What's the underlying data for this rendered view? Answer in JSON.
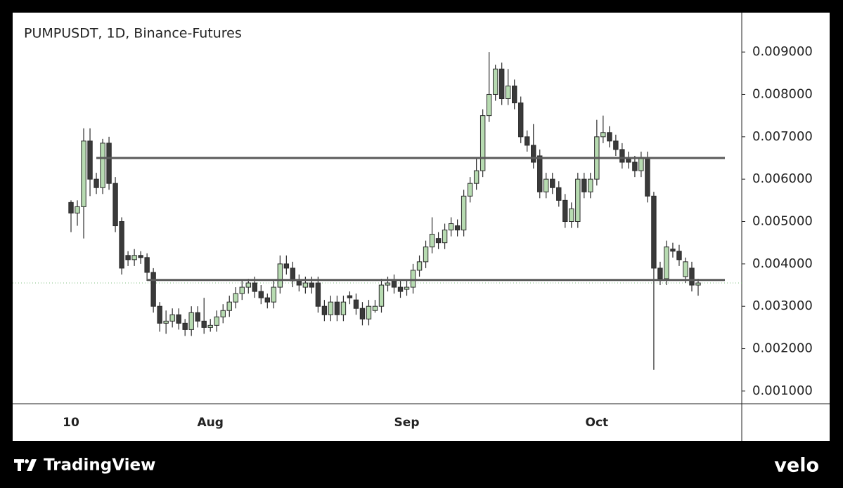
{
  "chart_data": {
    "type": "candlestick",
    "title": "PUMPUSDT, 1D, Binance-Futures",
    "branding": "TradingView",
    "source": "velo",
    "categories": [
      "10",
      null,
      null,
      null,
      null,
      null,
      null,
      null,
      null,
      null,
      null,
      null,
      null,
      null,
      null,
      null,
      null,
      null,
      null,
      null,
      null,
      null,
      "Aug",
      null,
      null,
      null,
      null,
      null,
      null,
      null,
      null,
      null,
      null,
      null,
      null,
      null,
      null,
      null,
      null,
      null,
      null,
      null,
      null,
      null,
      null,
      null,
      null,
      null,
      null,
      null,
      null,
      null,
      null,
      "Sep",
      null,
      null,
      null,
      null,
      null,
      null,
      null,
      null,
      null,
      null,
      null,
      null,
      null,
      null,
      null,
      null,
      null,
      null,
      null,
      null,
      null,
      null,
      null,
      null,
      null,
      null,
      null,
      null,
      null,
      "Oct",
      null,
      null,
      null,
      null,
      null,
      null,
      null,
      null,
      null,
      null,
      null,
      null,
      null,
      null,
      null,
      null
    ],
    "open": [
      0.00545,
      0.0052,
      0.00535,
      0.0069,
      0.006,
      0.0058,
      0.00685,
      0.0059,
      0.005,
      0.0042,
      0.0041,
      0.0042,
      0.00415,
      0.0038,
      0.003,
      0.0026,
      0.00265,
      0.0028,
      0.0026,
      0.00245,
      0.00285,
      0.00265,
      0.0025,
      0.00255,
      0.00275,
      0.0029,
      0.0031,
      0.0033,
      0.00345,
      0.00355,
      0.00335,
      0.0032,
      0.0031,
      0.00345,
      0.004,
      0.0039,
      0.0036,
      0.00345,
      0.00355,
      0.00355,
      0.003,
      0.0028,
      0.0031,
      0.0028,
      0.00325,
      0.00315,
      0.00295,
      0.0027,
      0.0029,
      0.003,
      0.0035,
      0.0036,
      0.00345,
      0.0034,
      0.00345,
      0.00385,
      0.00405,
      0.0044,
      0.0046,
      0.0045,
      0.0048,
      0.0049,
      0.0048,
      0.0056,
      0.0059,
      0.0062,
      0.0075,
      0.008,
      0.0086,
      0.0079,
      0.0082,
      0.0078,
      0.007,
      0.0068,
      0.00655,
      0.0057,
      0.006,
      0.0058,
      0.0055,
      0.005,
      0.005,
      0.006,
      0.0057,
      0.006,
      0.007,
      0.0071,
      0.0069,
      0.0067,
      0.0065,
      0.0064,
      0.0062,
      0.0065,
      0.0056,
      0.0039,
      0.00365,
      0.00435,
      0.0043,
      0.0037,
      0.0039,
      0.0035
    ],
    "high": [
      0.0055,
      0.0055,
      0.0072,
      0.0072,
      0.00615,
      0.00695,
      0.007,
      0.00605,
      0.0051,
      0.0043,
      0.00435,
      0.0043,
      0.00425,
      0.0039,
      0.0031,
      0.0029,
      0.00295,
      0.00295,
      0.0027,
      0.003,
      0.003,
      0.0032,
      0.0027,
      0.0029,
      0.00305,
      0.00325,
      0.00345,
      0.0036,
      0.00365,
      0.0037,
      0.0035,
      0.0033,
      0.0036,
      0.0042,
      0.0042,
      0.00405,
      0.00375,
      0.0037,
      0.0037,
      0.0037,
      0.00315,
      0.00325,
      0.00325,
      0.00325,
      0.00335,
      0.0033,
      0.0031,
      0.00315,
      0.00315,
      0.00365,
      0.0037,
      0.00375,
      0.0036,
      0.0036,
      0.004,
      0.0042,
      0.00455,
      0.0051,
      0.00475,
      0.00495,
      0.0051,
      0.00505,
      0.00575,
      0.00605,
      0.0065,
      0.00765,
      0.009,
      0.0087,
      0.00875,
      0.0086,
      0.00835,
      0.00795,
      0.00715,
      0.0073,
      0.0067,
      0.00615,
      0.00615,
      0.00595,
      0.00565,
      0.00545,
      0.00615,
      0.00615,
      0.00615,
      0.0074,
      0.0075,
      0.00725,
      0.00705,
      0.00685,
      0.00665,
      0.00655,
      0.00665,
      0.00665,
      0.0057,
      0.00405,
      0.00455,
      0.0045,
      0.00445,
      0.00415,
      0.00405,
      0.00365
    ],
    "low": [
      0.00475,
      0.0049,
      0.0046,
      0.0056,
      0.00565,
      0.00565,
      0.00575,
      0.00475,
      0.00375,
      0.00395,
      0.00395,
      0.004,
      0.0036,
      0.00285,
      0.0024,
      0.00235,
      0.0025,
      0.00245,
      0.0023,
      0.0023,
      0.0025,
      0.00235,
      0.0024,
      0.0024,
      0.0026,
      0.00275,
      0.00295,
      0.00315,
      0.0033,
      0.0032,
      0.00305,
      0.00295,
      0.00295,
      0.0033,
      0.00375,
      0.00345,
      0.00335,
      0.0033,
      0.0033,
      0.00285,
      0.00265,
      0.00265,
      0.00265,
      0.00265,
      0.00305,
      0.0028,
      0.00255,
      0.00255,
      0.00285,
      0.00285,
      0.00335,
      0.0033,
      0.0032,
      0.00325,
      0.0033,
      0.0037,
      0.0039,
      0.00425,
      0.00435,
      0.00435,
      0.00465,
      0.00465,
      0.00465,
      0.00545,
      0.00575,
      0.00605,
      0.00735,
      0.00785,
      0.00775,
      0.00775,
      0.00765,
      0.00685,
      0.00665,
      0.00625,
      0.00555,
      0.00555,
      0.00565,
      0.00535,
      0.00485,
      0.00485,
      0.00485,
      0.00555,
      0.00555,
      0.00585,
      0.00685,
      0.00675,
      0.00655,
      0.00625,
      0.00625,
      0.00605,
      0.00605,
      0.00545,
      0.0015,
      0.0035,
      0.0035,
      0.00415,
      0.00395,
      0.00355,
      0.00335,
      0.00325
    ],
    "close": [
      0.0052,
      0.00535,
      0.0069,
      0.006,
      0.0058,
      0.00685,
      0.0059,
      0.0049,
      0.0039,
      0.0041,
      0.0042,
      0.00415,
      0.0038,
      0.003,
      0.0026,
      0.00265,
      0.0028,
      0.0026,
      0.00245,
      0.00285,
      0.00265,
      0.0025,
      0.00255,
      0.00275,
      0.0029,
      0.0031,
      0.0033,
      0.00345,
      0.00355,
      0.00335,
      0.0032,
      0.0031,
      0.00345,
      0.004,
      0.0039,
      0.0036,
      0.0035,
      0.00355,
      0.00345,
      0.003,
      0.0028,
      0.0031,
      0.0028,
      0.0031,
      0.0032,
      0.00295,
      0.0027,
      0.003,
      0.003,
      0.0035,
      0.00355,
      0.00345,
      0.00335,
      0.00345,
      0.00385,
      0.00405,
      0.0044,
      0.0047,
      0.0045,
      0.0048,
      0.00495,
      0.0048,
      0.0056,
      0.0059,
      0.0062,
      0.0075,
      0.008,
      0.0086,
      0.0079,
      0.0082,
      0.0078,
      0.007,
      0.0068,
      0.0064,
      0.0057,
      0.006,
      0.0058,
      0.0055,
      0.005,
      0.0053,
      0.006,
      0.0057,
      0.006,
      0.007,
      0.0071,
      0.0069,
      0.0067,
      0.0064,
      0.0064,
      0.0062,
      0.0065,
      0.0056,
      0.0039,
      0.00365,
      0.0044,
      0.0043,
      0.0041,
      0.00405,
      0.0035,
      0.00355
    ],
    "hlines": [
      0.0065,
      0.00362
    ],
    "price_line": 0.00355,
    "ylim": [
      0.0007,
      0.00993
    ],
    "yticks": [
      {
        "value": 0.001,
        "label": "0.001000"
      },
      {
        "value": 0.002,
        "label": "0.002000"
      },
      {
        "value": 0.003,
        "label": "0.003000"
      },
      {
        "value": 0.004,
        "label": "0.004000"
      },
      {
        "value": 0.005,
        "label": "0.005000"
      },
      {
        "value": 0.006,
        "label": "0.006000"
      },
      {
        "value": 0.007,
        "label": "0.007000"
      },
      {
        "value": 0.008,
        "label": "0.008000"
      },
      {
        "value": 0.009,
        "label": "0.009000"
      }
    ],
    "up_color": "#b7dbb1",
    "down_color": "#3a3a3a",
    "outline_color": "#2b2b2b",
    "hline_color": "#5a5a5a",
    "price_line_color": "#7fbf7f"
  }
}
